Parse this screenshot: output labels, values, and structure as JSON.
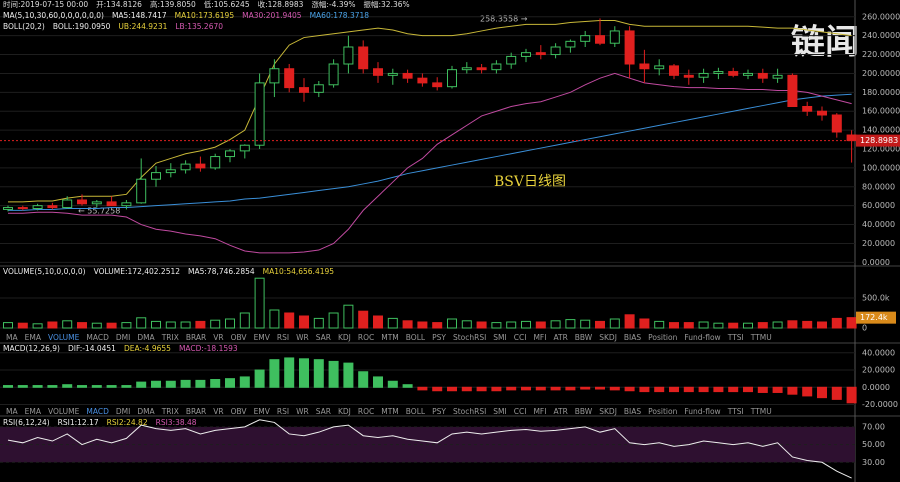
{
  "header": {
    "time": "时间:2019-07-15 00:00",
    "open": "开:134.8126",
    "high": "高:139.8050",
    "low": "低:105.6245",
    "close": "收:128.8983",
    "change": "涨幅:-4.39%",
    "amplitude": "振幅:32.36%"
  },
  "ma_legend": {
    "params": "MA(5,10,30,60,0,0,0,0,0,0)",
    "ma5": "MA5:148.7417",
    "ma10": "MA10:173.6195",
    "ma30": "MA30:201.9405",
    "ma60": "MA60:178.3718"
  },
  "boll_legend": {
    "params": "BOLL(20,2)",
    "boll": "BOLL:190.0950",
    "ub": "UB:244.9231",
    "lb": "LB:135.2670"
  },
  "volume_legend": {
    "params": "VOLUME(5,10,0,0,0,0)",
    "volume": "VOLUME:172,402.2512",
    "ma5": "MA5:78,746.2854",
    "ma10": "MA10:54,656.4195"
  },
  "macd_legend": {
    "params": "MACD(12,26,9)",
    "dif": "DIF:-14.0451",
    "dea": "DEA:-4.9655",
    "macd": "MACD:-18.1593"
  },
  "rsi_legend": {
    "params": "RSI(6,12,24)",
    "rsi1": "RSI1:12.17",
    "rsi2": "RSI2:24.82",
    "rsi3": "RSI3:38.48"
  },
  "tabs": [
    "MA",
    "EMA",
    "VOLUME",
    "MACD",
    "DMI",
    "DMA",
    "TRIX",
    "BRAR",
    "VR",
    "OBV",
    "EMV",
    "RSI",
    "WR",
    "SAR",
    "KDJ",
    "ROC",
    "MTM",
    "BOLL",
    "PSY",
    "StochRSI",
    "SMI",
    "CCI",
    "MFI",
    "ATR",
    "BBW",
    "SKDJ",
    "BIAS",
    "Position",
    "Fund-flow",
    "TTSI",
    "TTMU"
  ],
  "watermark": "链闻",
  "chart_data": [
    {
      "type": "candlestick",
      "title": "BSV日线图",
      "annotations": [
        "258.3558 →",
        "← 55.7258"
      ],
      "last_label": "128.8983",
      "ylim": [
        -6,
        264
      ],
      "yticks": [
        {
          "value": 0,
          "label": "0.0000"
        },
        {
          "value": 20,
          "label": "20.0000"
        },
        {
          "value": 40,
          "label": "40.0000"
        },
        {
          "value": 60,
          "label": "60.0000"
        },
        {
          "value": 80,
          "label": "80.0000"
        },
        {
          "value": 100,
          "label": "100.0000"
        },
        {
          "value": 120,
          "label": "120.0000"
        },
        {
          "value": 140,
          "label": "140.0000"
        },
        {
          "value": 160,
          "label": "160.0000"
        },
        {
          "value": 180,
          "label": "180.0000"
        },
        {
          "value": 200,
          "label": "200.0000"
        },
        {
          "value": 220,
          "label": "220.0000"
        },
        {
          "value": 240,
          "label": "240.0000"
        },
        {
          "value": 260,
          "label": "260.0000"
        }
      ],
      "ohlc": [
        [
          56,
          60,
          54,
          58
        ],
        [
          58,
          60,
          55,
          57
        ],
        [
          57,
          62,
          55,
          60
        ],
        [
          60,
          63,
          56,
          58
        ],
        [
          58,
          70,
          57,
          66
        ],
        [
          66,
          72,
          60,
          62
        ],
        [
          62,
          66,
          58,
          64
        ],
        [
          64,
          70,
          60,
          60
        ],
        [
          60,
          66,
          56,
          63
        ],
        [
          63,
          110,
          62,
          88
        ],
        [
          88,
          102,
          80,
          95
        ],
        [
          95,
          105,
          90,
          98
        ],
        [
          98,
          108,
          94,
          104
        ],
        [
          104,
          112,
          96,
          100
        ],
        [
          100,
          115,
          98,
          112
        ],
        [
          112,
          120,
          106,
          118
        ],
        [
          118,
          125,
          110,
          124
        ],
        [
          124,
          200,
          120,
          190
        ],
        [
          190,
          215,
          175,
          205
        ],
        [
          205,
          210,
          180,
          185
        ],
        [
          185,
          195,
          170,
          180
        ],
        [
          180,
          192,
          175,
          188
        ],
        [
          188,
          215,
          185,
          210
        ],
        [
          210,
          240,
          200,
          228
        ],
        [
          228,
          235,
          200,
          205
        ],
        [
          205,
          212,
          190,
          198
        ],
        [
          198,
          205,
          188,
          200
        ],
        [
          200,
          204,
          190,
          195
        ],
        [
          195,
          200,
          186,
          190
        ],
        [
          190,
          196,
          182,
          186
        ],
        [
          186,
          208,
          184,
          204
        ],
        [
          204,
          212,
          200,
          206
        ],
        [
          206,
          210,
          200,
          204
        ],
        [
          204,
          214,
          200,
          210
        ],
        [
          210,
          222,
          205,
          218
        ],
        [
          218,
          226,
          212,
          222
        ],
        [
          222,
          230,
          215,
          220
        ],
        [
          220,
          232,
          216,
          228
        ],
        [
          228,
          236,
          222,
          234
        ],
        [
          234,
          245,
          228,
          240
        ],
        [
          240,
          258.3558,
          230,
          232
        ],
        [
          232,
          250,
          228,
          245
        ],
        [
          245,
          250,
          195,
          210
        ],
        [
          210,
          225,
          190,
          205
        ],
        [
          205,
          215,
          198,
          208
        ],
        [
          208,
          210,
          194,
          198
        ],
        [
          198,
          204,
          188,
          196
        ],
        [
          196,
          205,
          190,
          200
        ],
        [
          200,
          206,
          194,
          202
        ],
        [
          202,
          206,
          196,
          198
        ],
        [
          198,
          204,
          194,
          200
        ],
        [
          200,
          205,
          190,
          195
        ],
        [
          195,
          205,
          190,
          198
        ],
        [
          198,
          200,
          165,
          165
        ],
        [
          165,
          170,
          155,
          160
        ],
        [
          160,
          165,
          150,
          156
        ],
        [
          156,
          158,
          132,
          138
        ],
        [
          134.8126,
          139.805,
          105.6245,
          128.8983
        ]
      ],
      "series": [
        {
          "color": "#3a8fd8",
          "values": [
            55,
            55,
            56,
            56,
            57,
            57,
            57,
            58,
            58,
            59,
            60,
            61,
            62,
            63,
            64,
            65,
            67,
            68,
            70,
            72,
            74,
            76,
            78,
            80,
            83,
            86,
            90,
            94,
            97,
            100,
            103,
            106,
            109,
            112,
            115,
            118,
            121,
            124,
            127,
            130,
            133,
            136,
            139,
            142,
            145,
            148,
            151,
            154,
            157,
            160,
            163,
            166,
            169,
            172,
            174,
            176,
            177,
            178
          ]
        },
        {
          "color": "#c04aa0",
          "values": [
            52,
            52,
            53,
            53,
            52,
            50,
            50,
            50,
            48,
            40,
            35,
            33,
            30,
            28,
            25,
            18,
            12,
            10,
            10,
            10,
            11,
            13,
            20,
            35,
            55,
            70,
            85,
            100,
            110,
            125,
            135,
            145,
            155,
            160,
            165,
            168,
            170,
            175,
            180,
            188,
            195,
            200,
            195,
            190,
            188,
            186,
            185,
            185,
            184,
            184,
            183,
            183,
            182,
            182,
            180,
            176,
            172,
            168
          ]
        },
        {
          "color": "#c8b838",
          "values": [
            64,
            64,
            65,
            65,
            68,
            70,
            70,
            70,
            72,
            90,
            105,
            110,
            115,
            118,
            122,
            130,
            140,
            175,
            210,
            230,
            238,
            240,
            242,
            244,
            246,
            248,
            246,
            242,
            240,
            240,
            240,
            242,
            245,
            248,
            250,
            252,
            252,
            252,
            254,
            255,
            256,
            256,
            252,
            250,
            250,
            250,
            250,
            250,
            250,
            250,
            250,
            249,
            248,
            248,
            246,
            244,
            242,
            240
          ]
        }
      ]
    },
    {
      "type": "bar",
      "last_label": "172.4k",
      "ylim": [
        0,
        850000
      ],
      "yticks": [
        0,
        {
          "value": 500000,
          "label": "500.0k"
        }
      ],
      "values": [
        90000,
        80000,
        70000,
        100000,
        120000,
        90000,
        80000,
        80000,
        90000,
        170000,
        110000,
        100000,
        100000,
        110000,
        130000,
        150000,
        250000,
        830000,
        300000,
        250000,
        200000,
        160000,
        250000,
        380000,
        280000,
        200000,
        160000,
        120000,
        100000,
        90000,
        150000,
        120000,
        100000,
        90000,
        100000,
        110000,
        100000,
        120000,
        140000,
        130000,
        110000,
        150000,
        220000,
        150000,
        110000,
        90000,
        90000,
        100000,
        80000,
        80000,
        80000,
        90000,
        100000,
        120000,
        110000,
        100000,
        160000,
        172402.2512
      ]
    },
    {
      "type": "bar",
      "ylim": [
        -24,
        49
      ],
      "yticks": [
        {
          "value": -20,
          "label": "-20.0000"
        },
        {
          "value": 0,
          "label": "0.0000"
        },
        {
          "value": 20,
          "label": "20.0000"
        },
        {
          "value": 40,
          "label": "40.0000"
        }
      ],
      "values": [
        2,
        2,
        2,
        2,
        3,
        2,
        2,
        2,
        2,
        6,
        7,
        7,
        8,
        8,
        9,
        10,
        12,
        20,
        32,
        34,
        33,
        32,
        30,
        28,
        18,
        12,
        7,
        3,
        -3,
        -4,
        -4,
        -4,
        -4,
        -4,
        -3,
        -3,
        -3,
        -3,
        -3,
        -2,
        -2,
        -3,
        -4,
        -5,
        -5,
        -5,
        -5,
        -5,
        -5,
        -5,
        -5,
        -6,
        -6,
        -8,
        -10,
        -12,
        -14,
        -18
      ]
    },
    {
      "type": "line",
      "ylim": [
        10,
        80
      ],
      "yticks": [
        {
          "value": 30,
          "label": "30.00"
        },
        {
          "value": 50,
          "label": "50.00"
        },
        {
          "value": 70,
          "label": "70.00"
        }
      ],
      "values": [
        55,
        52,
        58,
        54,
        62,
        50,
        56,
        52,
        57,
        72,
        68,
        66,
        68,
        62,
        66,
        68,
        70,
        78,
        75,
        62,
        60,
        64,
        70,
        72,
        60,
        58,
        60,
        56,
        54,
        52,
        62,
        64,
        62,
        64,
        66,
        67,
        65,
        66,
        68,
        70,
        64,
        68,
        52,
        50,
        52,
        48,
        50,
        54,
        52,
        50,
        52,
        48,
        52,
        36,
        32,
        30,
        20,
        12.17
      ]
    }
  ]
}
